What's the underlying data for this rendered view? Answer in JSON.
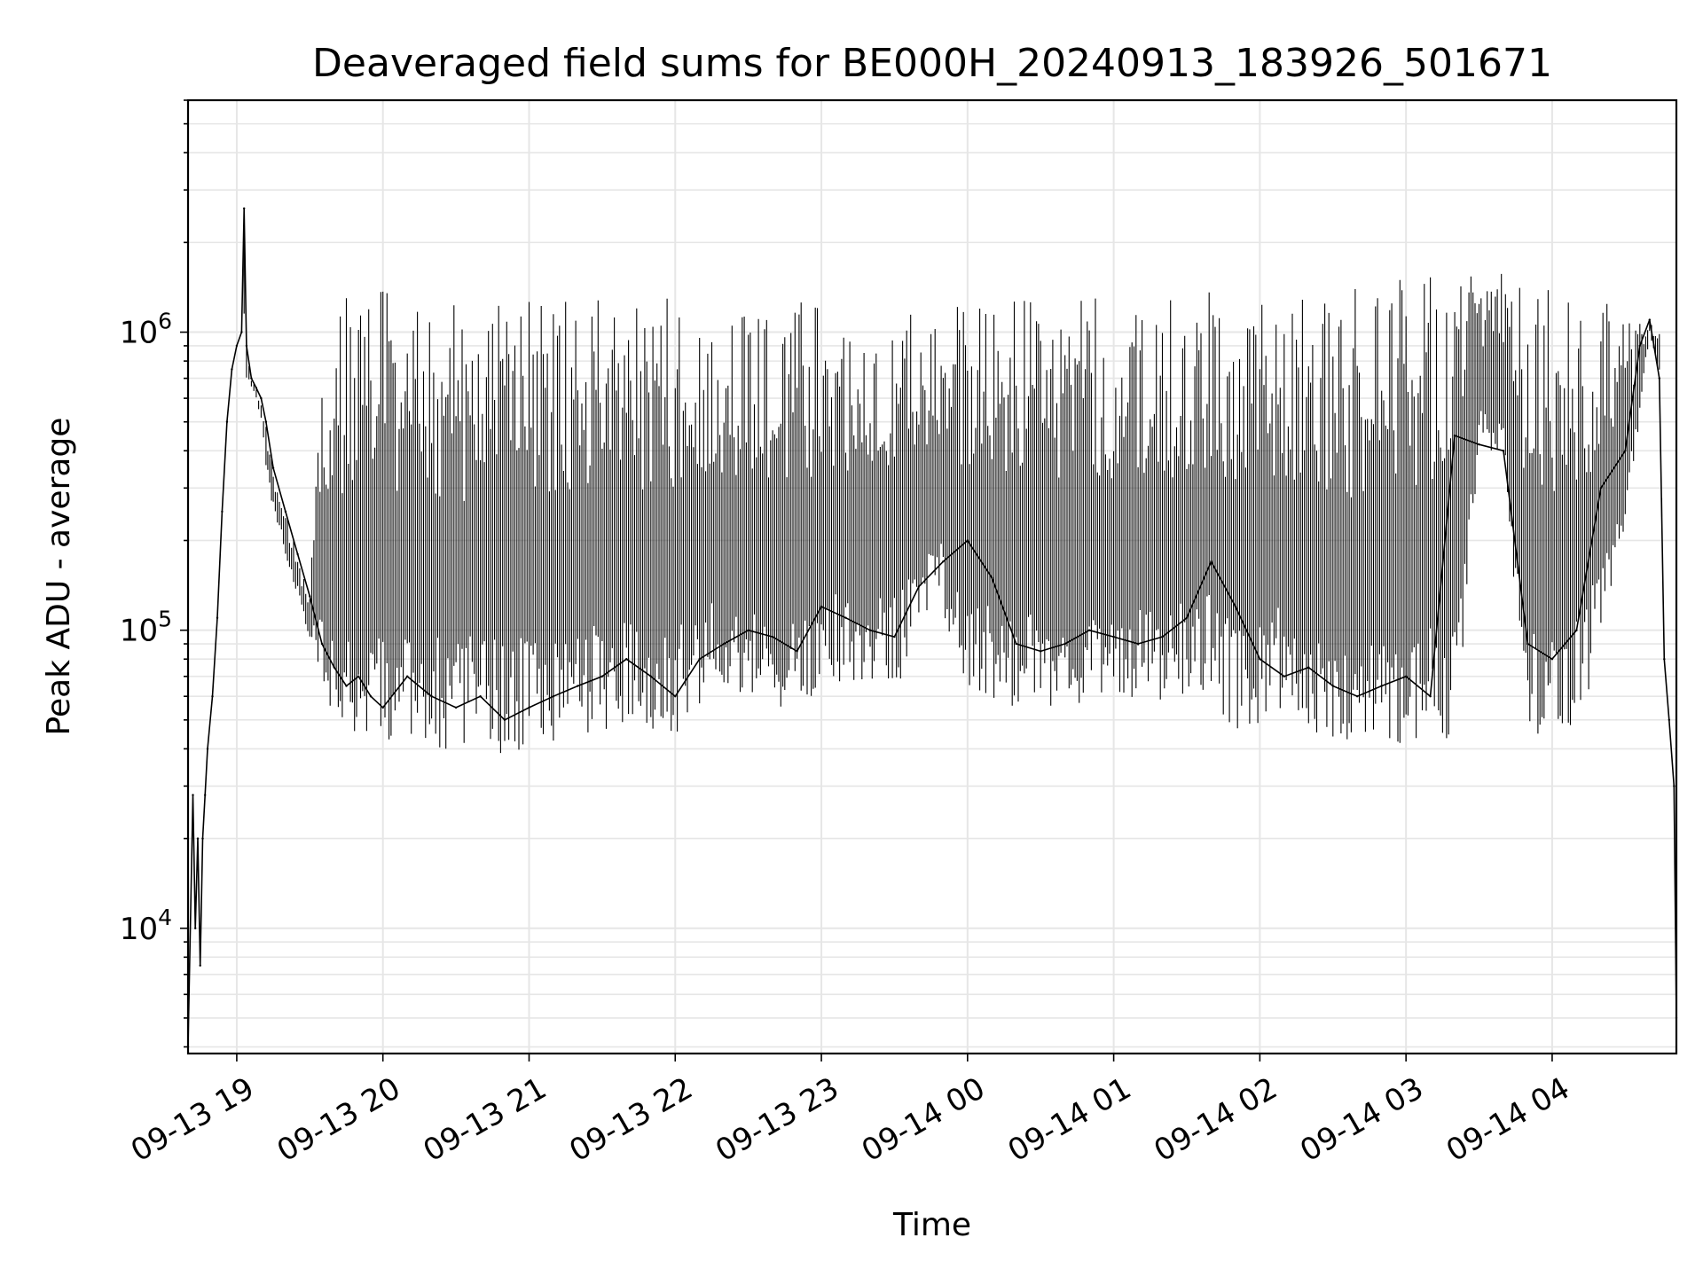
{
  "chart_data": {
    "type": "line",
    "title": "Deaveraged field sums for BE000H_20240913_183926_501671",
    "xlabel": "Time",
    "ylabel": "Peak ADU - average",
    "yscale": "log",
    "grid": true,
    "line_color": "#000000",
    "xlim": [
      "2024-09-13 18:40",
      "2024-09-14 04:51"
    ],
    "ylim": [
      3800,
      6000000
    ],
    "x_ticks": [
      "09-13 19",
      "09-13 20",
      "09-13 21",
      "09-13 22",
      "09-13 23",
      "09-14 00",
      "09-14 01",
      "09-14 02",
      "09-14 03",
      "09-14 04"
    ],
    "y_ticks": [
      "10^4",
      "10^5",
      "10^6"
    ],
    "series": [
      {
        "x": [
          "2024-09-13 18:40",
          "2024-09-13 18:42",
          "2024-09-13 18:43",
          "2024-09-13 18:44",
          "2024-09-13 18:45",
          "2024-09-13 18:46",
          "2024-09-13 18:47",
          "2024-09-13 18:48",
          "2024-09-13 18:50",
          "2024-09-13 18:52",
          "2024-09-13 18:54",
          "2024-09-13 18:56",
          "2024-09-13 18:58",
          "2024-09-13 19:00",
          "2024-09-13 19:02",
          "2024-09-13 19:03",
          "2024-09-13 19:04",
          "2024-09-13 19:06",
          "2024-09-13 19:08",
          "2024-09-13 19:10",
          "2024-09-13 19:12",
          "2024-09-13 19:15",
          "2024-09-13 19:20",
          "2024-09-13 19:25",
          "2024-09-13 19:30",
          "2024-09-13 19:35",
          "2024-09-13 19:40",
          "2024-09-13 19:45",
          "2024-09-13 19:50",
          "2024-09-13 19:55",
          "2024-09-13 20:00",
          "2024-09-13 20:10",
          "2024-09-13 20:20",
          "2024-09-13 20:30",
          "2024-09-13 20:40",
          "2024-09-13 20:50",
          "2024-09-13 21:00",
          "2024-09-13 21:10",
          "2024-09-13 21:20",
          "2024-09-13 21:30",
          "2024-09-13 21:40",
          "2024-09-13 21:50",
          "2024-09-13 22:00",
          "2024-09-13 22:10",
          "2024-09-13 22:20",
          "2024-09-13 22:30",
          "2024-09-13 22:40",
          "2024-09-13 22:50",
          "2024-09-13 23:00",
          "2024-09-13 23:10",
          "2024-09-13 23:20",
          "2024-09-13 23:30",
          "2024-09-13 23:40",
          "2024-09-13 23:50",
          "2024-09-14 00:00",
          "2024-09-14 00:10",
          "2024-09-14 00:20",
          "2024-09-14 00:30",
          "2024-09-14 00:40",
          "2024-09-14 00:50",
          "2024-09-14 01:00",
          "2024-09-14 01:10",
          "2024-09-14 01:20",
          "2024-09-14 01:30",
          "2024-09-14 01:40",
          "2024-09-14 01:50",
          "2024-09-14 02:00",
          "2024-09-14 02:10",
          "2024-09-14 02:20",
          "2024-09-14 02:30",
          "2024-09-14 02:40",
          "2024-09-14 02:50",
          "2024-09-14 03:00",
          "2024-09-14 03:10",
          "2024-09-14 03:20",
          "2024-09-14 03:30",
          "2024-09-14 03:40",
          "2024-09-14 03:50",
          "2024-09-14 04:00",
          "2024-09-14 04:10",
          "2024-09-14 04:20",
          "2024-09-14 04:30",
          "2024-09-14 04:36",
          "2024-09-14 04:40",
          "2024-09-14 04:44",
          "2024-09-14 04:46",
          "2024-09-14 04:48",
          "2024-09-14 04:50",
          "2024-09-14 04:51"
        ],
        "y": [
          4000,
          28000,
          10000,
          20000,
          7500,
          20000,
          28000,
          40000,
          60000,
          110000,
          250000,
          500000,
          750000,
          900000,
          1000000,
          2600000,
          900000,
          700000,
          650000,
          600000,
          500000,
          350000,
          250000,
          180000,
          130000,
          90000,
          75000,
          65000,
          70000,
          60000,
          55000,
          70000,
          60000,
          55000,
          60000,
          50000,
          55000,
          60000,
          65000,
          70000,
          80000,
          70000,
          60000,
          80000,
          90000,
          100000,
          95000,
          85000,
          120000,
          110000,
          100000,
          95000,
          140000,
          170000,
          200000,
          150000,
          90000,
          85000,
          90000,
          100000,
          95000,
          90000,
          95000,
          110000,
          170000,
          120000,
          80000,
          70000,
          75000,
          65000,
          60000,
          65000,
          70000,
          60000,
          450000,
          420000,
          400000,
          90000,
          80000,
          100000,
          300000,
          400000,
          900000,
          1100000,
          700000,
          80000,
          50000,
          30000,
          5000
        ],
        "high_envelope": [
          4000,
          28000,
          10000,
          20000,
          7500,
          20000,
          28000,
          40000,
          60000,
          110000,
          250000,
          500000,
          750000,
          900000,
          1000000,
          2600000,
          900000,
          700000,
          650000,
          600000,
          500000,
          350000,
          250000,
          180000,
          130000,
          900000,
          1000000,
          1300000,
          1300000,
          1300000,
          1400000,
          1300000,
          1300000,
          1300000,
          1300000,
          1300000,
          1300000,
          1300000,
          1300000,
          1300000,
          1300000,
          1300000,
          1300000,
          1300000,
          1300000,
          1300000,
          1300000,
          1300000,
          1300000,
          1300000,
          1300000,
          1300000,
          1300000,
          1300000,
          1300000,
          1300000,
          1300000,
          1300000,
          1300000,
          1300000,
          1300000,
          1300000,
          1300000,
          1400000,
          1400000,
          1300000,
          1400000,
          1400000,
          1400000,
          1400000,
          1400000,
          1500000,
          1500000,
          1600000,
          1600000,
          1600000,
          1600000,
          1500000,
          1400000,
          1300000,
          1300000,
          1200000,
          1100000,
          1100000,
          1000000,
          80000,
          50000,
          30000,
          5000
        ],
        "low_envelope": [
          4000,
          28000,
          10000,
          20000,
          7500,
          20000,
          28000,
          40000,
          60000,
          110000,
          250000,
          500000,
          750000,
          900000,
          1000000,
          900000,
          700000,
          650000,
          600000,
          500000,
          350000,
          250000,
          180000,
          130000,
          90000,
          60000,
          50000,
          45000,
          45000,
          45000,
          42000,
          42000,
          40000,
          40000,
          40000,
          38000,
          40000,
          42000,
          45000,
          45000,
          48000,
          45000,
          43000,
          55000,
          60000,
          60000,
          55000,
          55000,
          60000,
          65000,
          60000,
          60000,
          90000,
          110000,
          60000,
          55000,
          55000,
          50000,
          55000,
          55000,
          55000,
          55000,
          55000,
          60000,
          60000,
          45000,
          45000,
          55000,
          45000,
          40000,
          38000,
          35000,
          40000,
          45000,
          40000,
          400000,
          380000,
          40000,
          40000,
          50000,
          80000,
          200000,
          500000,
          1000000,
          700000,
          80000,
          50000,
          30000,
          5000
        ]
      }
    ]
  }
}
